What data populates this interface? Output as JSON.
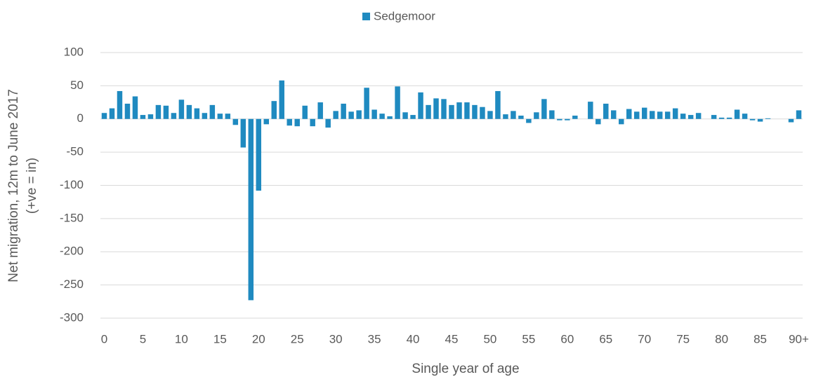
{
  "chart_data": {
    "type": "bar",
    "legend": "top",
    "x_label": "Single year of age",
    "y_label": [
      "Net migration, 12m to June 2017",
      "(+ve = in)"
    ],
    "categories": [
      "0",
      null,
      null,
      null,
      null,
      "5",
      null,
      null,
      null,
      null,
      "10",
      null,
      null,
      null,
      null,
      "15",
      null,
      null,
      null,
      null,
      "20",
      null,
      null,
      null,
      null,
      "25",
      null,
      null,
      null,
      null,
      "30",
      null,
      null,
      null,
      null,
      "35",
      null,
      null,
      null,
      null,
      "40",
      null,
      null,
      null,
      null,
      "45",
      null,
      null,
      null,
      null,
      "50",
      null,
      null,
      null,
      null,
      "55",
      null,
      null,
      null,
      null,
      "60",
      null,
      null,
      null,
      null,
      "65",
      null,
      null,
      null,
      null,
      "70",
      null,
      null,
      null,
      null,
      "75",
      null,
      null,
      null,
      null,
      "80",
      null,
      null,
      null,
      null,
      "85",
      null,
      null,
      null,
      null,
      "90+"
    ],
    "series": [
      {
        "name": "Sedgemoor",
        "color": "#1f8ac0",
        "values": [
          9,
          16,
          42,
          23,
          34,
          6,
          7,
          21,
          20,
          9,
          29,
          21,
          16,
          9,
          21,
          8,
          8,
          -9,
          -43,
          -273,
          -108,
          -8,
          27,
          58,
          -10,
          -11,
          20,
          -11,
          25,
          -13,
          12,
          23,
          11,
          13,
          47,
          14,
          8,
          4,
          49,
          10,
          6,
          40,
          21,
          31,
          30,
          21,
          25,
          25,
          21,
          18,
          12,
          42,
          7,
          12,
          5,
          -6,
          10,
          30,
          13,
          -2,
          -2,
          5,
          0,
          26,
          -8,
          23,
          13,
          -8,
          15,
          11,
          17,
          12,
          11,
          11,
          16,
          8,
          6,
          9,
          0,
          6,
          2,
          2,
          14,
          8,
          -2,
          -4,
          1,
          0,
          0,
          -5,
          13
        ]
      }
    ],
    "ylim": [
      -300,
      100
    ],
    "yticks": [
      -300,
      -250,
      -200,
      -150,
      -100,
      -50,
      0,
      50,
      100
    ],
    "grid": true
  }
}
